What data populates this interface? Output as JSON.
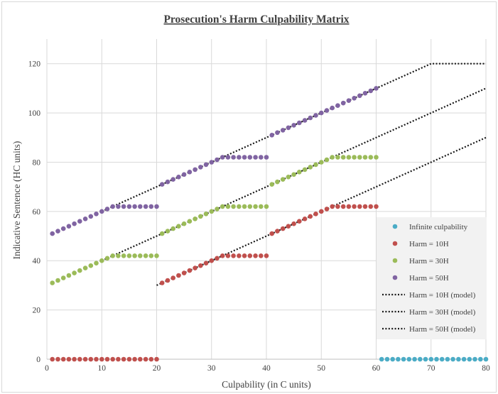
{
  "chart_data": {
    "type": "scatter",
    "title": "Prosecution's Harm Culpability Matrix",
    "xlabel": "Culpability (in C units)",
    "ylabel": "Indicative Sentence (HC units)",
    "xlim": [
      0,
      80
    ],
    "ylim": [
      0,
      130
    ],
    "xticks": [
      0,
      10,
      20,
      30,
      40,
      50,
      60,
      70,
      80
    ],
    "yticks": [
      0,
      20,
      40,
      60,
      80,
      100,
      120
    ],
    "grid": true,
    "legend": "right, lower",
    "colors": {
      "infinite": "#4bacc6",
      "h10": "#c0504d",
      "h30": "#9bbb59",
      "h50": "#8064a2",
      "model": "#1a1a1a",
      "grid": "#d9d9d9",
      "legend_bg": "#f2f2f2"
    },
    "series": [
      {
        "name": "Infinite culpability",
        "kind": "points",
        "color_key": "infinite",
        "x": [
          61,
          62,
          63,
          64,
          65,
          66,
          67,
          68,
          69,
          70,
          71,
          72,
          73,
          74,
          75,
          76,
          77,
          78,
          79,
          80
        ],
        "y": [
          0,
          0,
          0,
          0,
          0,
          0,
          0,
          0,
          0,
          0,
          0,
          0,
          0,
          0,
          0,
          0,
          0,
          0,
          0,
          0
        ]
      },
      {
        "name": "Harm = 10H",
        "kind": "points",
        "color_key": "h10",
        "x": [
          1,
          2,
          3,
          4,
          5,
          6,
          7,
          8,
          9,
          10,
          11,
          12,
          13,
          14,
          15,
          16,
          17,
          18,
          19,
          20,
          21,
          22,
          23,
          24,
          25,
          26,
          27,
          28,
          29,
          30,
          31,
          32,
          33,
          34,
          35,
          36,
          37,
          38,
          39,
          40,
          41,
          42,
          43,
          44,
          45,
          46,
          47,
          48,
          49,
          50,
          51,
          52,
          53,
          54,
          55,
          56,
          57,
          58,
          59,
          60
        ],
        "y": [
          0,
          0,
          0,
          0,
          0,
          0,
          0,
          0,
          0,
          0,
          0,
          0,
          0,
          0,
          0,
          0,
          0,
          0,
          0,
          0,
          31,
          32,
          33,
          34,
          35,
          36,
          37,
          38,
          39,
          40,
          41,
          42,
          42,
          42,
          42,
          42,
          42,
          42,
          42,
          42,
          51,
          52,
          53,
          54,
          55,
          56,
          57,
          58,
          59,
          60,
          61,
          62,
          62,
          62,
          62,
          62,
          62,
          62,
          62,
          62
        ]
      },
      {
        "name": "Harm = 30H",
        "kind": "points",
        "color_key": "h30",
        "x": [
          1,
          2,
          3,
          4,
          5,
          6,
          7,
          8,
          9,
          10,
          11,
          12,
          13,
          14,
          15,
          16,
          17,
          18,
          19,
          20,
          21,
          22,
          23,
          24,
          25,
          26,
          27,
          28,
          29,
          30,
          31,
          32,
          33,
          34,
          35,
          36,
          37,
          38,
          39,
          40,
          41,
          42,
          43,
          44,
          45,
          46,
          47,
          48,
          49,
          50,
          51,
          52,
          53,
          54,
          55,
          56,
          57,
          58,
          59,
          60
        ],
        "y": [
          31,
          32,
          33,
          34,
          35,
          36,
          37,
          38,
          39,
          40,
          41,
          42,
          42,
          42,
          42,
          42,
          42,
          42,
          42,
          42,
          51,
          52,
          53,
          54,
          55,
          56,
          57,
          58,
          59,
          60,
          61,
          62,
          62,
          62,
          62,
          62,
          62,
          62,
          62,
          62,
          71,
          72,
          73,
          74,
          75,
          76,
          77,
          78,
          79,
          80,
          81,
          82,
          82,
          82,
          82,
          82,
          82,
          82,
          82,
          82
        ]
      },
      {
        "name": "Harm = 50H",
        "kind": "points",
        "color_key": "h50",
        "x": [
          1,
          2,
          3,
          4,
          5,
          6,
          7,
          8,
          9,
          10,
          11,
          12,
          13,
          14,
          15,
          16,
          17,
          18,
          19,
          20,
          21,
          22,
          23,
          24,
          25,
          26,
          27,
          28,
          29,
          30,
          31,
          32,
          33,
          34,
          35,
          36,
          37,
          38,
          39,
          40,
          41,
          42,
          43,
          44,
          45,
          46,
          47,
          48,
          49,
          50,
          51,
          52,
          53,
          54,
          55,
          56,
          57,
          58,
          59,
          60
        ],
        "y": [
          51,
          52,
          53,
          54,
          55,
          56,
          57,
          58,
          59,
          60,
          61,
          62,
          62,
          62,
          62,
          62,
          62,
          62,
          62,
          62,
          71,
          72,
          73,
          74,
          75,
          76,
          77,
          78,
          79,
          80,
          81,
          82,
          82,
          82,
          82,
          82,
          82,
          82,
          82,
          82,
          91,
          92,
          93,
          94,
          95,
          96,
          97,
          98,
          99,
          100,
          101,
          102,
          103,
          104,
          105,
          106,
          107,
          108,
          109,
          110
        ]
      },
      {
        "name": "Harm = 10H (model)",
        "kind": "dotted-line",
        "color_key": "model",
        "x": [
          20,
          80
        ],
        "y": [
          30,
          90
        ]
      },
      {
        "name": "Harm = 30H (model)",
        "kind": "dotted-line",
        "color_key": "model",
        "x": [
          10,
          80
        ],
        "y": [
          40,
          110
        ]
      },
      {
        "name": "Harm = 50H (model)",
        "kind": "dotted-line",
        "color_key": "model",
        "x": [
          10,
          70,
          80
        ],
        "y": [
          60,
          120,
          120
        ]
      }
    ]
  }
}
